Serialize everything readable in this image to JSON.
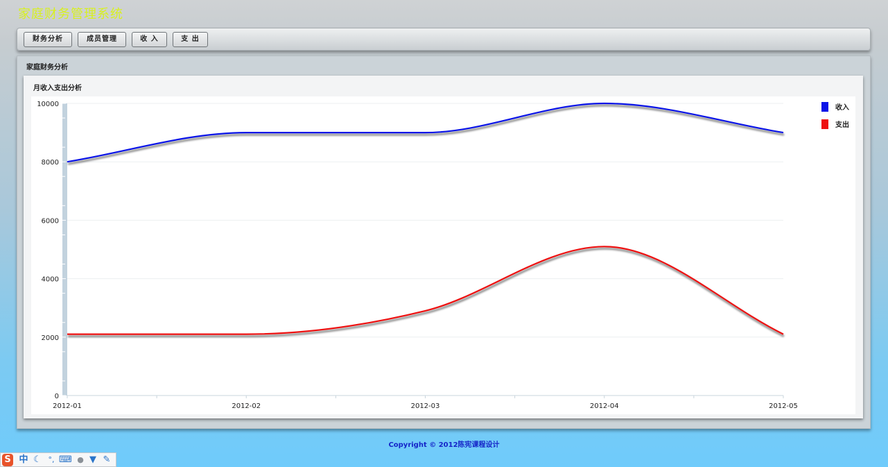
{
  "app": {
    "title": "家庭财务管理系统"
  },
  "toolbar": {
    "buttons": [
      {
        "label": "财务分析"
      },
      {
        "label": "成员管理"
      },
      {
        "label": "收 入"
      },
      {
        "label": "支 出"
      }
    ]
  },
  "panel": {
    "title": "家庭财务分析",
    "card_title": "月收入支出分析"
  },
  "chart_data": {
    "type": "line",
    "title": "月收入支出分析",
    "categories": [
      "2012-01",
      "2012-02",
      "2012-03",
      "2012-04",
      "2012-05"
    ],
    "y_ticks": [
      "0",
      "2000",
      "4000",
      "6000",
      "8000",
      "10000"
    ],
    "ylim": [
      0,
      10000
    ],
    "grid": true,
    "legend_position": "top-right",
    "series": [
      {
        "name": "收入",
        "color": "#0a14e8",
        "values": [
          8000,
          9000,
          9000,
          10000,
          9000
        ]
      },
      {
        "name": "支出",
        "color": "#ee1111",
        "values": [
          2100,
          2100,
          2900,
          5100,
          2100
        ]
      }
    ]
  },
  "footer": {
    "text": "Copyright © 2012陈宪课程设计"
  },
  "ime": {
    "items": [
      {
        "icon": "sogou-logo-icon",
        "glyph": "S"
      },
      {
        "icon": "chinese-mode-icon",
        "glyph": "中"
      },
      {
        "icon": "moon-icon",
        "glyph": "☾"
      },
      {
        "icon": "punctuation-icon",
        "glyph": "°,"
      },
      {
        "icon": "keyboard-icon",
        "glyph": "⌨"
      },
      {
        "icon": "user-icon",
        "glyph": "●"
      },
      {
        "icon": "skin-shirt-icon",
        "glyph": "▼"
      },
      {
        "icon": "wrench-icon",
        "glyph": "✎"
      }
    ]
  }
}
